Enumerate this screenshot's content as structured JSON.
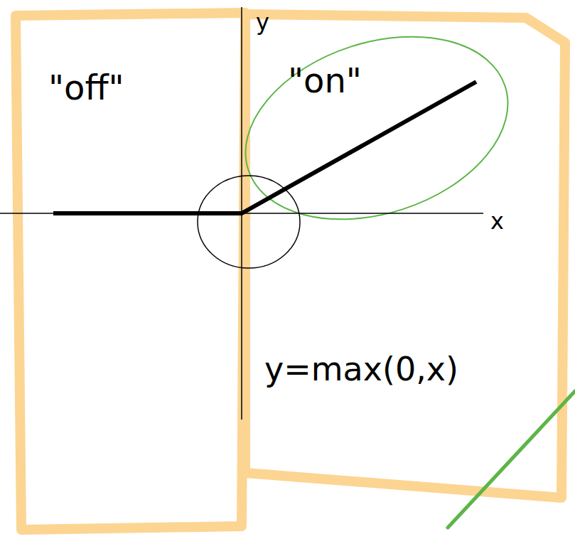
{
  "chart_data": {
    "type": "line",
    "x": [
      -2.65,
      0,
      3.3
    ],
    "values": [
      0,
      0,
      1.85
    ],
    "xlim": [
      -3.4,
      3.4
    ],
    "ylim": [
      -2.9,
      2.9
    ],
    "tick_labels": false,
    "x_label": "x",
    "y_label": "y",
    "color": "#000000",
    "annotations": [
      "\"off\"",
      "\"on\"",
      "y=max(0,x)"
    ]
  }
}
